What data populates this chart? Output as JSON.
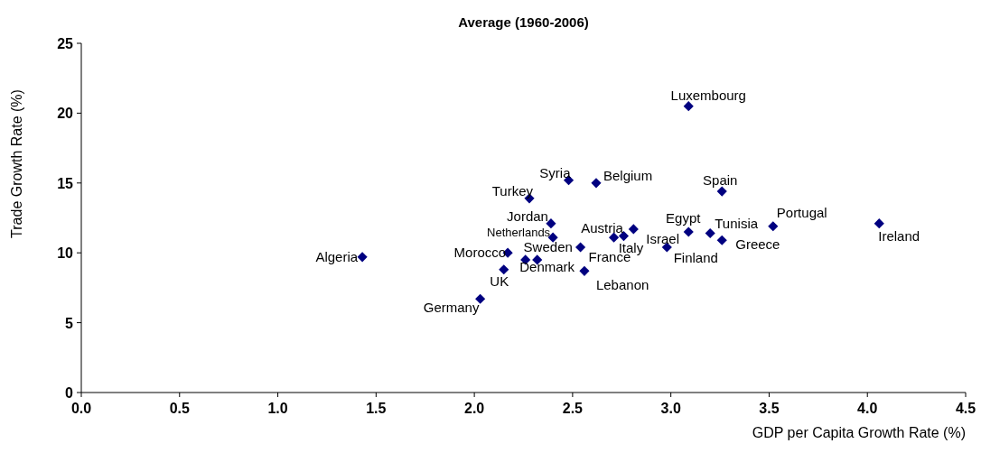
{
  "chart_data": {
    "type": "scatter",
    "title": "Average (1960-2006)",
    "xlabel": "GDP per Capita Growth Rate (%)",
    "ylabel": "Trade Growth Rate (%)",
    "xlim": [
      0,
      4.5
    ],
    "xticks": [
      {
        "value": 0,
        "label": "0.0"
      },
      {
        "value": 0.5,
        "label": "0.5"
      },
      {
        "value": 1,
        "label": "1.0"
      },
      {
        "value": 1.5,
        "label": "1.5"
      },
      {
        "value": 2,
        "label": "2.0"
      },
      {
        "value": 2.5,
        "label": "2.5"
      },
      {
        "value": 3,
        "label": "3.0"
      },
      {
        "value": 3.5,
        "label": "3.5"
      },
      {
        "value": 4,
        "label": "4.0"
      },
      {
        "value": 4.5,
        "label": "4.5"
      }
    ],
    "ylim": [
      0,
      25
    ],
    "yticks": [
      0,
      5,
      10,
      15,
      20,
      25
    ],
    "grid": false,
    "marker": "diamond",
    "series": [
      {
        "color": "#000080",
        "x": [
          1.43,
          2.48,
          2.62,
          2.28,
          2.39,
          2.4,
          2.32,
          2.17,
          2.26,
          2.54,
          2.56,
          2.15,
          2.03,
          2.71,
          2.76,
          2.81,
          3.09,
          2.98,
          3.2,
          3.26,
          3.26,
          3.52,
          4.06,
          3.09
        ],
        "values": [
          9.7,
          15.2,
          15.0,
          13.9,
          12.1,
          11.1,
          9.5,
          10.0,
          9.5,
          10.4,
          8.7,
          8.8,
          6.7,
          11.1,
          11.2,
          11.7,
          11.5,
          10.4,
          11.4,
          10.9,
          14.4,
          11.9,
          12.1,
          20.5
        ]
      }
    ],
    "annotations": [
      {
        "text": "Algeria",
        "x": 1.43,
        "y": 9.7
      },
      {
        "text": "Syria",
        "x": 2.48,
        "y": 15.2
      },
      {
        "text": "Belgium",
        "x": 2.62,
        "y": 15.0
      },
      {
        "text": "Turkey",
        "x": 2.28,
        "y": 13.9
      },
      {
        "text": "Jordan",
        "x": 2.39,
        "y": 12.1
      },
      {
        "text": "Netherlands",
        "x": 2.4,
        "y": 11.1
      },
      {
        "text": "Sweden",
        "x": 2.32,
        "y": 9.5
      },
      {
        "text": "Morocco",
        "x": 2.17,
        "y": 10.0
      },
      {
        "text": "Denmark",
        "x": 2.26,
        "y": 9.5
      },
      {
        "text": "France",
        "x": 2.54,
        "y": 10.4
      },
      {
        "text": "Lebanon",
        "x": 2.56,
        "y": 8.7
      },
      {
        "text": "UK",
        "x": 2.15,
        "y": 8.8
      },
      {
        "text": "Germany",
        "x": 2.03,
        "y": 6.7
      },
      {
        "text": "Austria",
        "x": 2.71,
        "y": 11.1
      },
      {
        "text": "Italy",
        "x": 2.76,
        "y": 11.2
      },
      {
        "text": "Israel",
        "x": 2.81,
        "y": 11.7
      },
      {
        "text": "Egypt",
        "x": 3.09,
        "y": 11.5
      },
      {
        "text": "Finland",
        "x": 2.98,
        "y": 10.4
      },
      {
        "text": "Tunisia",
        "x": 3.2,
        "y": 11.4
      },
      {
        "text": "Greece",
        "x": 3.26,
        "y": 10.9
      },
      {
        "text": "Spain",
        "x": 3.26,
        "y": 14.4
      },
      {
        "text": "Portugal",
        "x": 3.52,
        "y": 11.9
      },
      {
        "text": "Ireland",
        "x": 4.06,
        "y": 12.1
      },
      {
        "text": "Luxembourg",
        "x": 3.09,
        "y": 20.5
      }
    ]
  }
}
